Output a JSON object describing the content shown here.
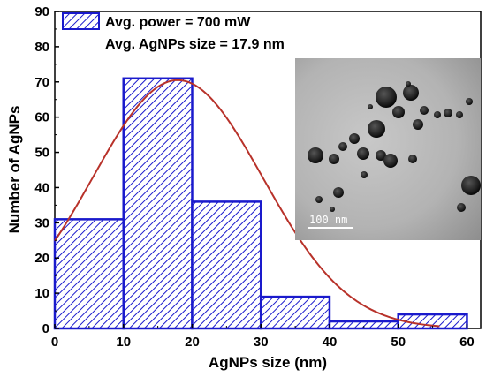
{
  "chart_data": {
    "type": "bar",
    "bins": [
      {
        "x0": 0,
        "x1": 10,
        "count": 31
      },
      {
        "x0": 10,
        "x1": 20,
        "count": 71
      },
      {
        "x0": 20,
        "x1": 30,
        "count": 36
      },
      {
        "x0": 30,
        "x1": 40,
        "count": 9
      },
      {
        "x0": 40,
        "x1": 50,
        "count": 2
      },
      {
        "x0": 50,
        "x1": 60,
        "count": 4
      }
    ],
    "fit_curve": {
      "type": "gaussian",
      "peak_x": 17.9,
      "peak_y": 70.5,
      "sigma": 12.4
    },
    "xlabel": "AgNPs size (nm)",
    "ylabel": "Number of AgNPs",
    "xlim": [
      0,
      62
    ],
    "ylim": [
      0,
      90
    ],
    "x_ticks": [
      "0",
      "10",
      "20",
      "30",
      "40",
      "50",
      "60"
    ],
    "y_ticks": [
      "0",
      "10",
      "20",
      "30",
      "40",
      "50",
      "60",
      "70",
      "80",
      "90"
    ],
    "legend": {
      "line1": "Avg. power = 700 mW",
      "line2": "Avg. AgNPs size = 17.9 nm",
      "placement": "top-left"
    },
    "inset": {
      "scale_bar_label": "100 nm"
    },
    "colors": {
      "bar_edge": "#1a1acc",
      "hatch": "#1a1acc",
      "fit_line": "#b8322a"
    }
  }
}
